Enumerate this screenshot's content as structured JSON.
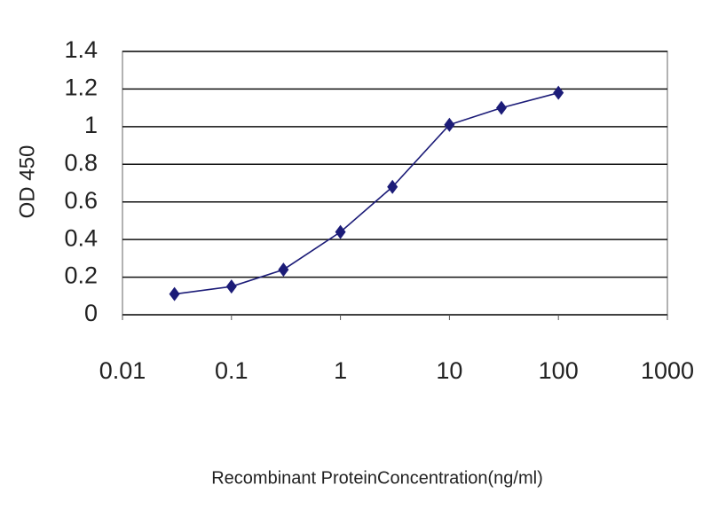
{
  "chart_data": {
    "type": "line",
    "y_label": "OD 450",
    "x_label": "Recombinant ProteinConcentration(ng/ml)",
    "x": [
      0.03,
      0.1,
      0.3,
      1,
      3,
      10,
      30,
      100
    ],
    "series": [
      {
        "color": "#1c1c78",
        "values": [
          0.11,
          0.15,
          0.24,
          0.44,
          0.68,
          1.01,
          1.1,
          1.18
        ]
      }
    ],
    "x_log": true,
    "xlim": [
      0.01,
      1000
    ],
    "xticks": [
      0.01,
      0.1,
      1,
      10,
      100,
      1000
    ],
    "ylim": [
      0,
      1.4
    ],
    "yticks": [
      0,
      0.2,
      0.4,
      0.6,
      0.8,
      1,
      1.2,
      1.4
    ],
    "grid": true
  }
}
